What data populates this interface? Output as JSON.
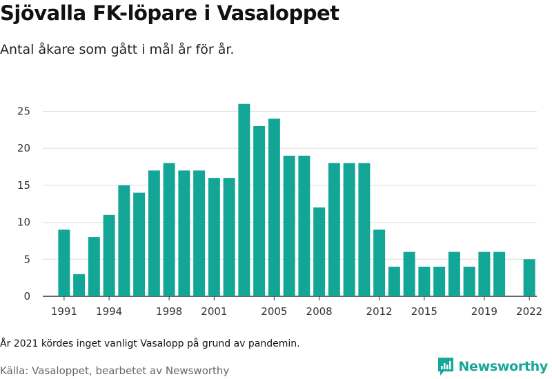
{
  "header": {
    "title": "Sjövalla FK-löpare i Vasaloppet",
    "subtitle": "Antal åkare som gått i mål år för år."
  },
  "footer": {
    "note": "År 2021 kördes inget vanligt Vasalopp på grund av pandemin.",
    "source": "Källa: Vasaloppet, bearbetet av Newsworthy",
    "logo_text": "Newsworthy"
  },
  "colors": {
    "bar": "#13a596",
    "grid": "#dddddd",
    "axis": "#333333",
    "logo": "#16a796"
  },
  "chart_data": {
    "type": "bar",
    "categories": [
      1991,
      1992,
      1993,
      1994,
      1995,
      1996,
      1997,
      1998,
      1999,
      2000,
      2001,
      2002,
      2003,
      2004,
      2005,
      2006,
      2007,
      2008,
      2009,
      2010,
      2011,
      2012,
      2013,
      2014,
      2015,
      2016,
      2017,
      2018,
      2019,
      2020,
      2021,
      2022
    ],
    "values": [
      9,
      3,
      8,
      11,
      15,
      14,
      17,
      18,
      17,
      17,
      16,
      16,
      26,
      23,
      24,
      19,
      19,
      12,
      18,
      18,
      18,
      9,
      4,
      6,
      4,
      4,
      6,
      4,
      6,
      6,
      null,
      5
    ],
    "x_tick_labels": [
      "1991",
      "1994",
      "1998",
      "2001",
      "2005",
      "2008",
      "2012",
      "2015",
      "2019",
      "2022"
    ],
    "y_ticks": [
      0,
      5,
      10,
      15,
      20,
      25
    ],
    "ylim": [
      0,
      27
    ],
    "title": "Sjövalla FK-löpare i Vasaloppet",
    "xlabel": "",
    "ylabel": "",
    "grid": true,
    "legend": "none"
  }
}
